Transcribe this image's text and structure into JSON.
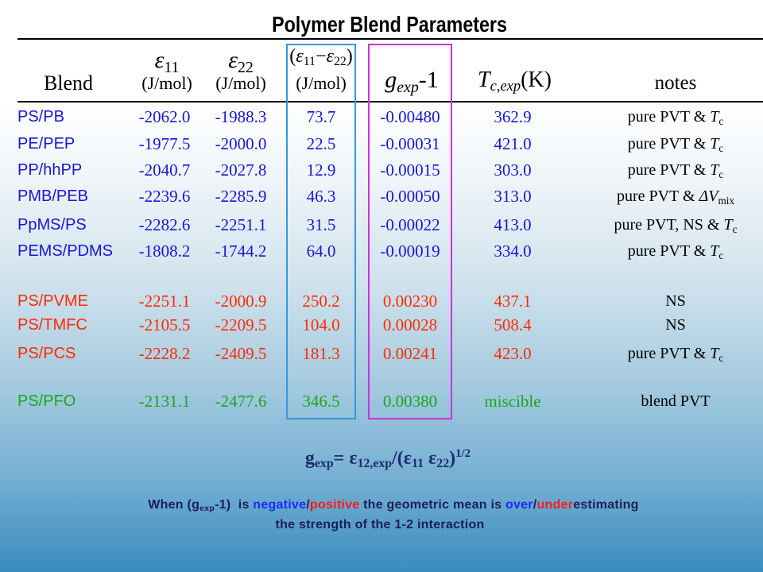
{
  "title": "Polymer Blend Parameters",
  "header": {
    "blend": "Blend",
    "eps11": {
      "sym": "ε",
      "sub": "11",
      "unit": "(J/mol)"
    },
    "eps22": {
      "sym": "ε",
      "sub": "22",
      "unit": "(J/mol)"
    },
    "diff": {
      "open": "(",
      "sym1": "ε",
      "sub1": "11",
      "minus": "−",
      "sym2": "ε",
      "sub2": "22",
      "close": ")",
      "unit": "(J/mol)"
    },
    "gexp": {
      "sym": "g",
      "sub": "exp",
      "rest": "-1"
    },
    "tc": {
      "sym": "T",
      "sub": "c,exp",
      "rest": "(K)"
    },
    "notes": "notes"
  },
  "rows": [
    {
      "blend": "PS/PB",
      "eps11": "-2062.0",
      "eps22": "-1988.3",
      "diff": "73.7",
      "gexp_minus_1": "-0.00480",
      "tc": "362.9",
      "note": {
        "text": "pure PVT & ",
        "sym": "T",
        "sub": "c"
      }
    },
    {
      "blend": "PE/PEP",
      "eps11": "-1977.5",
      "eps22": "-2000.0",
      "diff": "22.5",
      "gexp_minus_1": "-0.00031",
      "tc": "421.0",
      "note": {
        "text": "pure PVT & ",
        "sym": "T",
        "sub": "c"
      }
    },
    {
      "blend": "PP/hhPP",
      "eps11": "-2040.7",
      "eps22": "-2027.8",
      "diff": "12.9",
      "gexp_minus_1": "-0.00015",
      "tc": "303.0",
      "note": {
        "text": "pure PVT & ",
        "sym": "T",
        "sub": "c"
      }
    },
    {
      "blend": "PMB/PEB",
      "eps11": "-2239.6",
      "eps22": "-2285.9",
      "diff": "46.3",
      "gexp_minus_1": "-0.00050",
      "tc": "313.0",
      "note": {
        "text": "pure PVT & ",
        "sym": "ΔV",
        "sub": "mix"
      }
    },
    {
      "blend": "PpMS/PS",
      "eps11": "-2282.6",
      "eps22": "-2251.1",
      "diff": "31.5",
      "gexp_minus_1": "-0.00022",
      "tc": "413.0",
      "note": {
        "text": "pure PVT, NS & ",
        "sym": "T",
        "sub": "c"
      }
    },
    {
      "blend": "PEMS/PDMS",
      "eps11": "-1808.2",
      "eps22": "-1744.2",
      "diff": "64.0",
      "gexp_minus_1": "-0.00019",
      "tc": "334.0",
      "note": {
        "text": "pure PVT & ",
        "sym": "T",
        "sub": "c"
      }
    },
    {
      "blend": "PS/PVME",
      "eps11": "-2251.1",
      "eps22": "-2000.9",
      "diff": "250.2",
      "gexp_minus_1": "0.00230",
      "tc": "437.1",
      "note": {
        "text": "NS"
      }
    },
    {
      "blend": "PS/TMFC",
      "eps11": "-2105.5",
      "eps22": "-2209.5",
      "diff": "104.0",
      "gexp_minus_1": "0.00028",
      "tc": "508.4",
      "note": {
        "text": "NS"
      }
    },
    {
      "blend": "PS/PCS",
      "eps11": "-2228.2",
      "eps22": "-2409.5",
      "diff": "181.3",
      "gexp_minus_1": "0.00241",
      "tc": "423.0",
      "note": {
        "text": "pure PVT & ",
        "sym": "T",
        "sub": "c"
      }
    },
    {
      "blend": "PS/PFO",
      "eps11": "-2131.1",
      "eps22": "-2477.6",
      "diff": "346.5",
      "gexp_minus_1": "0.00380",
      "tc": "miscible",
      "note": {
        "text": "blend PVT"
      }
    }
  ],
  "formula": {
    "lhs": "g",
    "lhs_sub": "exp",
    "equals": "= ",
    "numerator": "ε",
    "numerator_sub": "12,exp",
    "divide": "/(",
    "denom1": "ε",
    "denom1_sub": "11",
    "denom2": " ε",
    "denom2_sub": "22",
    "close": ")",
    "power": "1/2"
  },
  "explanation": {
    "line1": {
      "p1": "When (g",
      "p1_sub": "exp",
      "p2": "-1)  is ",
      "negative": "negative",
      "slash1": "/",
      "positive": "positive",
      "p3": " the geometric mean is ",
      "over": "over",
      "slash2": "/",
      "under": "under",
      "p4": "estimating"
    },
    "line2": "the strength of the 1-2 interaction"
  },
  "colors": {
    "negative_rows": "#1616d6",
    "positive_rows": "#ff2a00",
    "miscible_row": "#18a818",
    "diff_box": "#3399dd",
    "gexp_box": "#cc33dd",
    "formula": "#1c2a72",
    "explanation": "#1a1f55",
    "negative_word": "#1a2cff",
    "positive_word": "#ff1a1a"
  }
}
